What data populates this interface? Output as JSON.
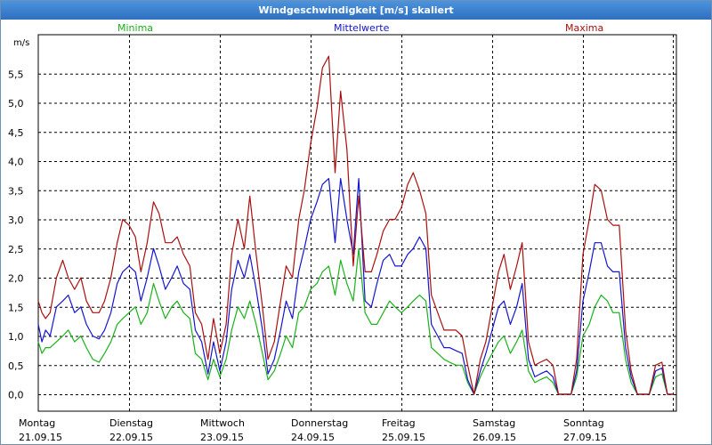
{
  "window": {
    "title": "Windgeschwindigkeit [m/s] skaliert"
  },
  "colors": {
    "minima": "#19b219",
    "mittelwerte": "#1515d0",
    "maxima": "#aa0f0f"
  },
  "chart_data": {
    "type": "line",
    "ylabel": "m/s",
    "ylim": [
      -0.2,
      6.1
    ],
    "y_ticks": [
      "0,0",
      "0,5",
      "1,0",
      "1,5",
      "2,0",
      "2,5",
      "3,0",
      "3,5",
      "4,0",
      "4,5",
      "5,0",
      "5,5"
    ],
    "xlim": [
      0,
      7
    ],
    "x_ticks": [
      {
        "day": "Montag",
        "date": "21.09.15"
      },
      {
        "day": "Dienstag",
        "date": "22.09.15"
      },
      {
        "day": "Mittwoch",
        "date": "23.09.15"
      },
      {
        "day": "Donnerstag",
        "date": "24.09.15"
      },
      {
        "day": "Freitag",
        "date": "25.09.15"
      },
      {
        "day": "Samstag",
        "date": "26.09.15"
      },
      {
        "day": "Sonntag",
        "date": "27.09.15"
      }
    ],
    "grid": true,
    "legend_position": "top",
    "series": [
      {
        "name": "Minima",
        "color": "#19b219",
        "x": [
          0,
          0.04,
          0.08,
          0.13,
          0.2,
          0.27,
          0.33,
          0.4,
          0.47,
          0.53,
          0.6,
          0.67,
          0.73,
          0.8,
          0.87,
          0.93,
          1.0,
          1.07,
          1.13,
          1.2,
          1.27,
          1.33,
          1.4,
          1.47,
          1.53,
          1.6,
          1.67,
          1.73,
          1.8,
          1.87,
          1.93,
          2.0,
          2.07,
          2.13,
          2.2,
          2.27,
          2.33,
          2.4,
          2.47,
          2.53,
          2.6,
          2.67,
          2.73,
          2.8,
          2.87,
          2.93,
          3.0,
          3.07,
          3.13,
          3.2,
          3.27,
          3.33,
          3.4,
          3.47,
          3.53,
          3.6,
          3.67,
          3.73,
          3.8,
          3.87,
          3.93,
          4.0,
          4.07,
          4.13,
          4.2,
          4.27,
          4.33,
          4.4,
          4.47,
          4.53,
          4.6,
          4.67,
          4.73,
          4.8,
          4.87,
          4.93,
          5.0,
          5.07,
          5.13,
          5.2,
          5.27,
          5.33,
          5.4,
          5.47,
          5.53,
          5.6,
          5.67,
          5.73,
          5.8,
          5.87,
          5.93,
          6.0,
          6.07,
          6.13,
          6.2,
          6.27,
          6.33,
          6.4,
          6.47,
          6.53,
          6.6,
          6.67,
          6.73,
          6.8,
          6.87,
          6.93,
          7.0
        ],
        "values": [
          0.9,
          0.7,
          0.8,
          0.8,
          0.9,
          1.0,
          1.1,
          0.9,
          1.0,
          0.8,
          0.6,
          0.55,
          0.7,
          0.9,
          1.2,
          1.3,
          1.4,
          1.5,
          1.2,
          1.4,
          1.9,
          1.6,
          1.3,
          1.5,
          1.6,
          1.4,
          1.3,
          0.7,
          0.6,
          0.25,
          0.6,
          0.3,
          0.6,
          1.1,
          1.5,
          1.3,
          1.6,
          1.2,
          0.7,
          0.25,
          0.4,
          0.7,
          1.0,
          0.8,
          1.4,
          1.5,
          1.8,
          1.9,
          2.1,
          2.2,
          1.7,
          2.3,
          1.9,
          1.6,
          2.5,
          1.4,
          1.2,
          1.2,
          1.4,
          1.6,
          1.5,
          1.4,
          1.5,
          1.6,
          1.7,
          1.6,
          0.8,
          0.7,
          0.6,
          0.55,
          0.5,
          0.5,
          0.2,
          0.0,
          0.3,
          0.5,
          0.7,
          0.9,
          1.0,
          0.7,
          0.9,
          1.1,
          0.4,
          0.2,
          0.25,
          0.3,
          0.2,
          0.0,
          0.0,
          0.0,
          0.3,
          1.0,
          1.2,
          1.5,
          1.7,
          1.6,
          1.4,
          1.4,
          0.6,
          0.2,
          0.0,
          0.0,
          0.0,
          0.3,
          0.35,
          0.0,
          0.0
        ]
      },
      {
        "name": "Mittelwerte",
        "color": "#1515d0",
        "x": [
          0,
          0.04,
          0.08,
          0.13,
          0.2,
          0.27,
          0.33,
          0.4,
          0.47,
          0.53,
          0.6,
          0.67,
          0.73,
          0.8,
          0.87,
          0.93,
          1.0,
          1.07,
          1.13,
          1.2,
          1.27,
          1.33,
          1.4,
          1.47,
          1.53,
          1.6,
          1.67,
          1.73,
          1.8,
          1.87,
          1.93,
          2.0,
          2.07,
          2.13,
          2.2,
          2.27,
          2.33,
          2.4,
          2.47,
          2.53,
          2.6,
          2.67,
          2.73,
          2.8,
          2.87,
          2.93,
          3.0,
          3.07,
          3.13,
          3.2,
          3.27,
          3.33,
          3.4,
          3.47,
          3.53,
          3.6,
          3.67,
          3.73,
          3.8,
          3.87,
          3.93,
          4.0,
          4.07,
          4.13,
          4.2,
          4.27,
          4.33,
          4.4,
          4.47,
          4.53,
          4.6,
          4.67,
          4.73,
          4.8,
          4.87,
          4.93,
          5.0,
          5.07,
          5.13,
          5.2,
          5.27,
          5.33,
          5.4,
          5.47,
          5.53,
          5.6,
          5.67,
          5.73,
          5.8,
          5.87,
          5.93,
          6.0,
          6.07,
          6.13,
          6.2,
          6.27,
          6.33,
          6.4,
          6.47,
          6.53,
          6.6,
          6.67,
          6.73,
          6.8,
          6.87,
          6.93,
          7.0
        ],
        "values": [
          1.2,
          0.9,
          1.1,
          1.0,
          1.5,
          1.6,
          1.7,
          1.4,
          1.5,
          1.2,
          1.0,
          0.95,
          1.1,
          1.4,
          1.9,
          2.1,
          2.2,
          2.1,
          1.6,
          2.0,
          2.5,
          2.2,
          1.8,
          2.0,
          2.2,
          1.9,
          1.8,
          1.1,
          0.9,
          0.35,
          0.9,
          0.4,
          0.9,
          1.8,
          2.3,
          2.0,
          2.4,
          1.8,
          1.1,
          0.35,
          0.6,
          1.1,
          1.6,
          1.3,
          2.1,
          2.5,
          3.0,
          3.3,
          3.6,
          3.7,
          2.6,
          3.7,
          3.0,
          2.4,
          3.7,
          1.6,
          1.5,
          1.9,
          2.3,
          2.4,
          2.2,
          2.2,
          2.4,
          2.5,
          2.7,
          2.5,
          1.2,
          1.0,
          0.8,
          0.8,
          0.75,
          0.7,
          0.25,
          0.0,
          0.4,
          0.7,
          1.1,
          1.5,
          1.6,
          1.2,
          1.5,
          1.9,
          0.6,
          0.3,
          0.35,
          0.4,
          0.3,
          0.0,
          0.0,
          0.0,
          0.4,
          1.6,
          2.1,
          2.6,
          2.6,
          2.2,
          2.1,
          2.1,
          0.8,
          0.3,
          0.0,
          0.0,
          0.0,
          0.4,
          0.45,
          0.0,
          0.0
        ]
      },
      {
        "name": "Maxima",
        "color": "#aa0f0f",
        "x": [
          0,
          0.04,
          0.08,
          0.13,
          0.2,
          0.27,
          0.33,
          0.4,
          0.47,
          0.53,
          0.6,
          0.67,
          0.73,
          0.8,
          0.87,
          0.93,
          1.0,
          1.07,
          1.13,
          1.2,
          1.27,
          1.33,
          1.4,
          1.47,
          1.53,
          1.6,
          1.67,
          1.73,
          1.8,
          1.87,
          1.93,
          2.0,
          2.07,
          2.13,
          2.2,
          2.27,
          2.33,
          2.4,
          2.47,
          2.53,
          2.6,
          2.67,
          2.73,
          2.8,
          2.87,
          2.93,
          3.0,
          3.07,
          3.13,
          3.2,
          3.27,
          3.33,
          3.4,
          3.47,
          3.53,
          3.6,
          3.67,
          3.73,
          3.8,
          3.87,
          3.93,
          4.0,
          4.07,
          4.13,
          4.2,
          4.27,
          4.33,
          4.4,
          4.47,
          4.53,
          4.6,
          4.67,
          4.73,
          4.8,
          4.87,
          4.93,
          5.0,
          5.07,
          5.13,
          5.2,
          5.27,
          5.33,
          5.4,
          5.47,
          5.53,
          5.6,
          5.67,
          5.73,
          5.8,
          5.87,
          5.93,
          6.0,
          6.07,
          6.13,
          6.2,
          6.27,
          6.33,
          6.4,
          6.47,
          6.53,
          6.6,
          6.67,
          6.73,
          6.8,
          6.87,
          6.93,
          7.0
        ],
        "values": [
          1.6,
          1.4,
          1.3,
          1.4,
          2.0,
          2.3,
          2.0,
          1.8,
          2.0,
          1.6,
          1.4,
          1.4,
          1.6,
          2.0,
          2.6,
          3.0,
          2.9,
          2.7,
          2.1,
          2.6,
          3.3,
          3.1,
          2.6,
          2.6,
          2.7,
          2.4,
          2.2,
          1.4,
          1.2,
          0.6,
          1.3,
          0.7,
          1.2,
          2.4,
          3.0,
          2.5,
          3.4,
          2.4,
          1.5,
          0.6,
          0.9,
          1.6,
          2.2,
          2.0,
          3.0,
          3.5,
          4.3,
          4.9,
          5.6,
          5.8,
          3.8,
          5.2,
          4.2,
          2.2,
          3.4,
          2.1,
          2.1,
          2.4,
          2.8,
          3.0,
          3.0,
          3.2,
          3.6,
          3.8,
          3.5,
          3.1,
          1.7,
          1.4,
          1.1,
          1.1,
          1.1,
          1.0,
          0.5,
          0.0,
          0.6,
          0.9,
          1.5,
          2.1,
          2.4,
          1.8,
          2.2,
          2.6,
          0.9,
          0.5,
          0.55,
          0.6,
          0.5,
          0.0,
          0.0,
          0.0,
          0.6,
          2.4,
          3.0,
          3.6,
          3.5,
          3.0,
          2.9,
          2.9,
          1.1,
          0.4,
          0.0,
          0.0,
          0.0,
          0.5,
          0.55,
          0.0,
          0.0
        ]
      }
    ]
  }
}
